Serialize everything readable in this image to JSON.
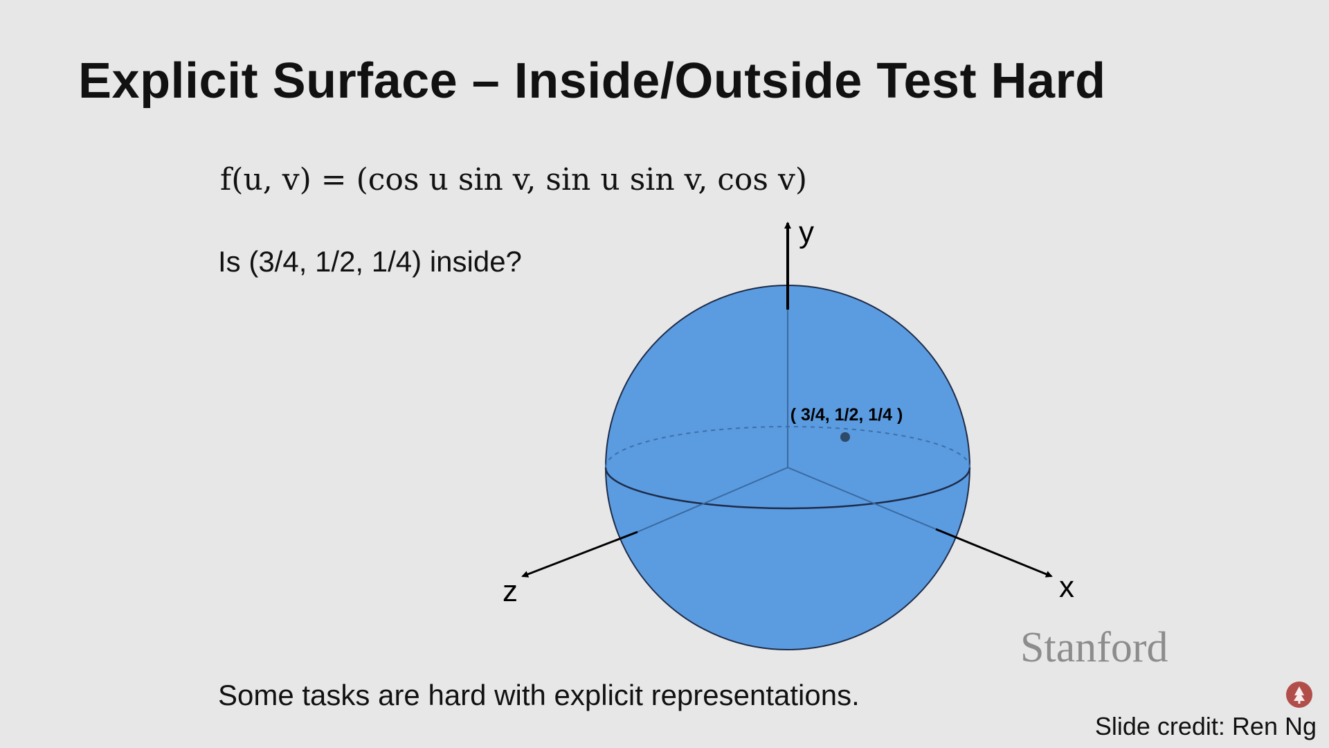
{
  "slide": {
    "title": "Explicit Surface – Inside/Outside Test Hard",
    "formula": "f(u, v) = (cos u sin v, sin u sin v, cos v)",
    "question": "Is (3/4, 1/2, 1/4) inside?",
    "bottom_text": "Some tasks are hard with explicit representations.",
    "credit": "Slide credit: Ren Ng",
    "logo_text": "Stanford"
  },
  "diagram": {
    "axis_labels": {
      "x": "x",
      "y": "y",
      "z": "z"
    },
    "point_label": "( 3/4, 1/2, 1/4 )",
    "colors": {
      "sphere": "#5b9be0",
      "outline": "#1d2b48",
      "background": "#e7e7e7"
    }
  }
}
